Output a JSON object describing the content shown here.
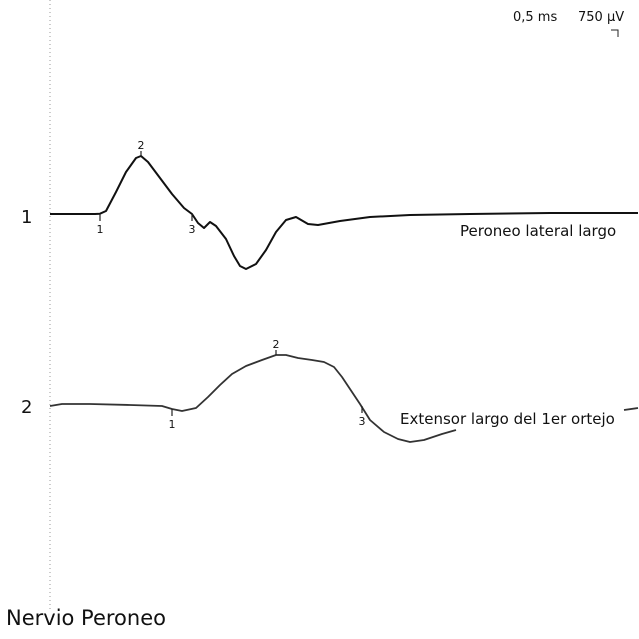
{
  "scale": {
    "time_per_div": "0,5 ms",
    "amplitude_per_div": "750 µV"
  },
  "footer_title": "Nervio Peroneo",
  "chart_data": {
    "type": "line",
    "title": "",
    "time_per_division_ms": 0.5,
    "amplitude_per_division_uV": 750,
    "series": [
      {
        "id": "1",
        "name": "Peroneo lateral largo",
        "markers": [
          "1",
          "2",
          "3"
        ],
        "points": [
          [
            0,
            0
          ],
          [
            45,
            0
          ],
          [
            50,
            0.3
          ],
          [
            56,
            3
          ],
          [
            66,
            22
          ],
          [
            76,
            42
          ],
          [
            86,
            56
          ],
          [
            91,
            58
          ],
          [
            98,
            52
          ],
          [
            110,
            36
          ],
          [
            122,
            20
          ],
          [
            134,
            6
          ],
          [
            142,
            0
          ],
          [
            148,
            -9
          ],
          [
            154,
            -14
          ],
          [
            160,
            -8
          ],
          [
            166,
            -12
          ],
          [
            176,
            -25
          ],
          [
            184,
            -42
          ],
          [
            190,
            -52
          ],
          [
            196,
            -55
          ],
          [
            206,
            -50
          ],
          [
            216,
            -36
          ],
          [
            226,
            -18
          ],
          [
            236,
            -6
          ],
          [
            246,
            -3
          ],
          [
            258,
            -10
          ],
          [
            268,
            -11
          ],
          [
            290,
            -7
          ],
          [
            320,
            -3
          ],
          [
            360,
            -1
          ],
          [
            420,
            0
          ],
          [
            500,
            1
          ],
          [
            588,
            1
          ]
        ],
        "marker_points": [
          [
            50,
            0
          ],
          [
            91,
            58
          ],
          [
            142,
            0
          ]
        ]
      },
      {
        "id": "2",
        "name": "Extensor largo del 1er ortejo",
        "markers": [
          "1",
          "2",
          "3"
        ],
        "points": [
          [
            0,
            0
          ],
          [
            12,
            2
          ],
          [
            40,
            2
          ],
          [
            80,
            1
          ],
          [
            112,
            0
          ],
          [
            122,
            -3
          ],
          [
            132,
            -5
          ],
          [
            146,
            -2
          ],
          [
            158,
            9
          ],
          [
            170,
            21
          ],
          [
            182,
            32
          ],
          [
            196,
            40
          ],
          [
            212,
            46
          ],
          [
            226,
            51
          ],
          [
            236,
            51
          ],
          [
            248,
            48
          ],
          [
            262,
            46
          ],
          [
            274,
            44
          ],
          [
            284,
            39
          ],
          [
            292,
            29
          ],
          [
            300,
            17
          ],
          [
            310,
            2
          ],
          [
            320,
            -14
          ],
          [
            334,
            -26
          ],
          [
            348,
            -33
          ],
          [
            360,
            -36
          ],
          [
            374,
            -34
          ],
          [
            392,
            -28
          ],
          [
            406,
            -24
          ]
        ],
        "tail_points": [
          [
            574,
            -4
          ],
          [
            588,
            -2
          ]
        ],
        "marker_points": [
          [
            122,
            -3
          ],
          [
            226,
            51
          ],
          [
            312,
            0
          ]
        ]
      }
    ]
  }
}
